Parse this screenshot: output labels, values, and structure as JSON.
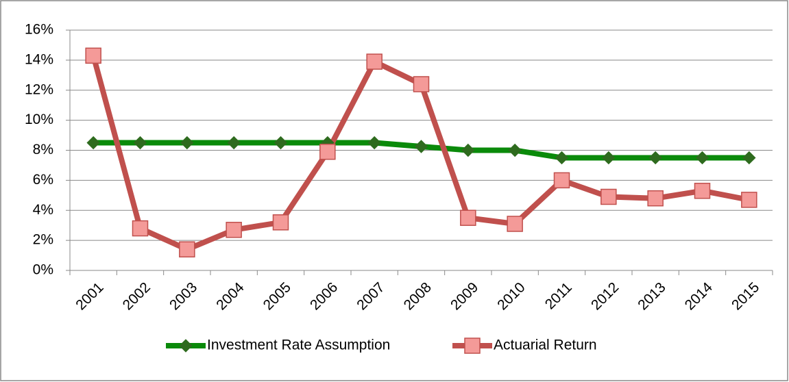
{
  "chart_data": {
    "type": "line",
    "categories": [
      "2001",
      "2002",
      "2003",
      "2004",
      "2005",
      "2006",
      "2007",
      "2008",
      "2009",
      "2010",
      "2011",
      "2012",
      "2013",
      "2014",
      "2015"
    ],
    "series": [
      {
        "name": "Investment Rate Assumption",
        "color": "#0a8a0a",
        "marker_color": "#2e6b1e",
        "marker": "diamond",
        "values": [
          8.5,
          8.5,
          8.5,
          8.5,
          8.5,
          8.5,
          8.5,
          8.25,
          8.0,
          8.0,
          7.5,
          7.5,
          7.5,
          7.5,
          7.5
        ]
      },
      {
        "name": "Actuarial Return",
        "color": "#c0504d",
        "marker_color": "#f49a98",
        "marker": "square",
        "values": [
          14.3,
          2.8,
          1.4,
          2.7,
          3.2,
          7.9,
          13.9,
          12.4,
          3.5,
          3.1,
          6.0,
          4.9,
          4.8,
          5.3,
          4.7
        ]
      }
    ],
    "ylim": [
      0,
      16
    ],
    "yticks": [
      {
        "value": 0,
        "label": "0%"
      },
      {
        "value": 2,
        "label": "2%"
      },
      {
        "value": 4,
        "label": "4%"
      },
      {
        "value": 6,
        "label": "6%"
      },
      {
        "value": 8,
        "label": "8%"
      },
      {
        "value": 10,
        "label": "10%"
      },
      {
        "value": 12,
        "label": "12%"
      },
      {
        "value": 14,
        "label": "14%"
      },
      {
        "value": 16,
        "label": "16%"
      }
    ],
    "grid": true,
    "legend": "bottom"
  }
}
